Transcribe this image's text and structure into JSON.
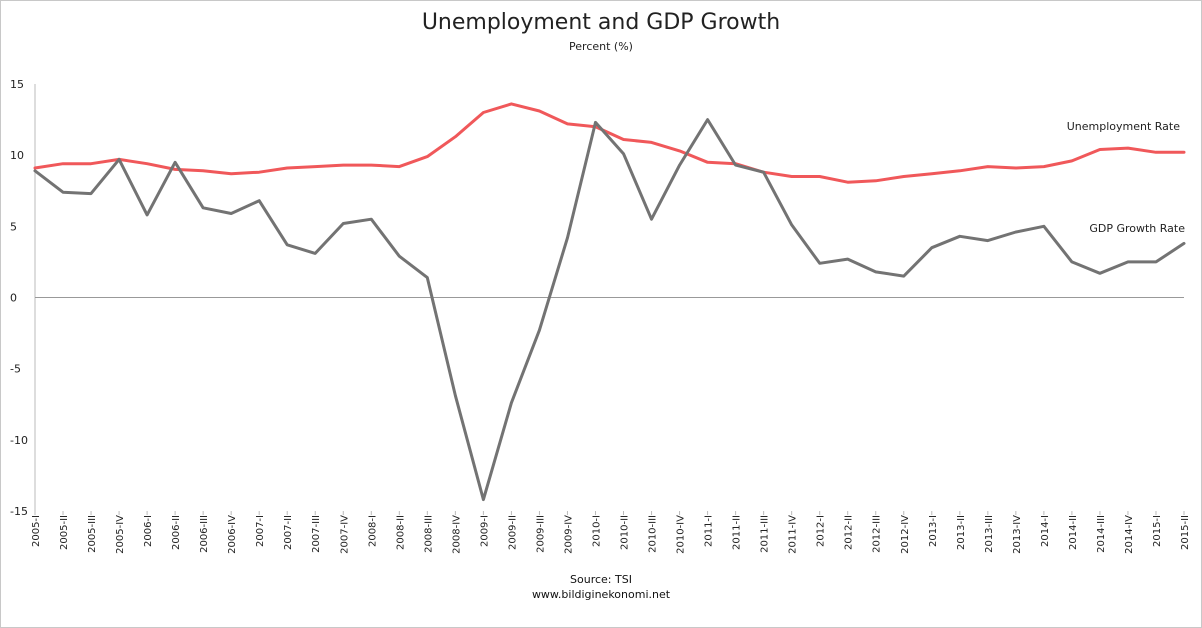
{
  "chart_data": {
    "type": "line",
    "title": "Unemployment and GDP Growth",
    "subtitle": "Percent (%)",
    "source_line1": "Source: TSI",
    "source_line2": "www.bildiginekonomi.net",
    "ylim": [
      -15,
      15
    ],
    "yticks": [
      15,
      10,
      5,
      0,
      -5,
      -10,
      -15
    ],
    "grid": false,
    "categories": [
      "2005-I",
      "2005-II",
      "2005-III",
      "2005-IV",
      "2006-I",
      "2006-II",
      "2006-III",
      "2006-IV",
      "2007-I",
      "2007-II",
      "2007-III",
      "2007-IV",
      "2008-I",
      "2008-II",
      "2008-III",
      "2008-IV",
      "2009-I",
      "2009-II",
      "2009-III",
      "2009-IV",
      "2010-I",
      "2010-II",
      "2010-III",
      "2010-IV",
      "2011-I",
      "2011-II",
      "2011-III",
      "2011-IV",
      "2012-I",
      "2012-II",
      "2012-III",
      "2012-IV",
      "2013-I",
      "2013-II",
      "2013-III",
      "2013-IV",
      "2014-I",
      "2014-II",
      "2014-III",
      "2014-IV",
      "2015-I",
      "2015-II"
    ],
    "series": [
      {
        "name": "Unemployment Rate",
        "color": "#f0585a",
        "values": [
          9.1,
          9.4,
          9.4,
          9.7,
          9.4,
          9.0,
          8.9,
          8.7,
          8.8,
          9.1,
          9.2,
          9.3,
          9.3,
          9.2,
          9.9,
          11.3,
          13.0,
          13.6,
          13.1,
          12.2,
          12.0,
          11.1,
          10.9,
          10.3,
          9.5,
          9.4,
          8.8,
          8.5,
          8.5,
          8.1,
          8.2,
          8.5,
          8.7,
          8.9,
          9.2,
          9.1,
          9.2,
          9.6,
          10.4,
          10.5,
          10.2,
          10.2
        ]
      },
      {
        "name": "GDP Growth Rate",
        "color": "#737373",
        "values": [
          8.9,
          7.4,
          7.3,
          9.7,
          5.8,
          9.5,
          6.3,
          5.9,
          6.8,
          3.7,
          3.1,
          5.2,
          5.5,
          2.9,
          1.4,
          -6.9,
          -14.2,
          -7.4,
          -2.3,
          4.2,
          12.3,
          10.1,
          5.5,
          9.3,
          12.5,
          9.3,
          8.8,
          5.1,
          2.4,
          2.7,
          1.8,
          1.5,
          3.5,
          4.3,
          4.0,
          4.6,
          5.0,
          2.5,
          1.7,
          2.5,
          2.5,
          3.8
        ]
      }
    ]
  }
}
